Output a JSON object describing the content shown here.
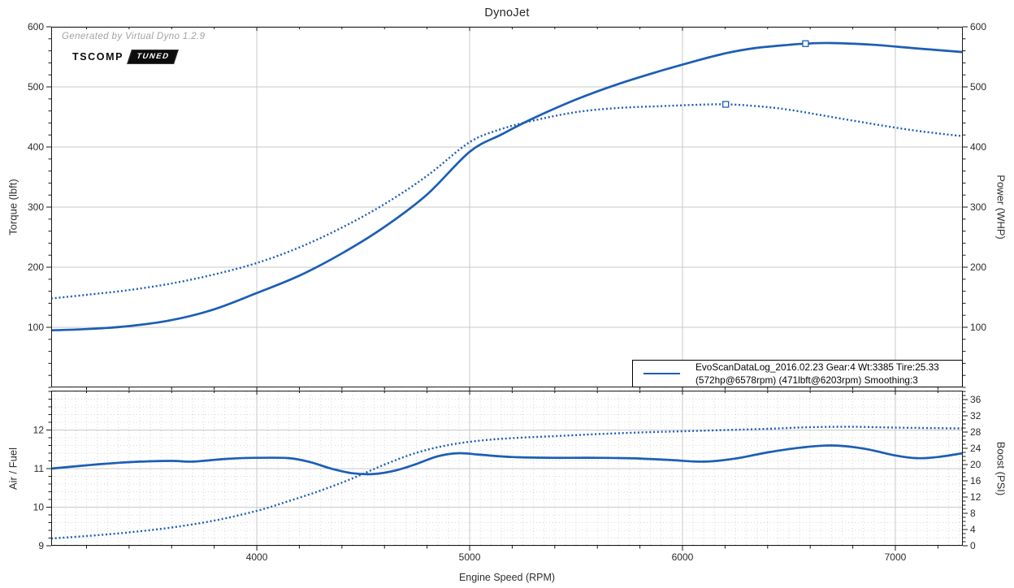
{
  "watermark": "Generated by Virtual Dyno 1.2.9",
  "logo": {
    "brand": "TSCOMP",
    "badge": "TUNED"
  },
  "colors": {
    "line_blue": "#1c5eb5",
    "grid_major": "#c9c9c9",
    "grid_fine": "#d8d8d2",
    "frame": "#1a1a1a",
    "tick_text": "#2b2b2b"
  },
  "chart_data": [
    {
      "type": "line",
      "title": "DynoJet",
      "xlabel": "Engine Speed (RPM)",
      "ylabel_left": "Torque (lbft)",
      "ylabel_right": "Power (WHP)",
      "xlim": [
        3034,
        7317
      ],
      "x_ticks": [
        4000,
        5000,
        6000,
        7000
      ],
      "ylim_left": [
        0,
        600
      ],
      "ylim_right": [
        0,
        600
      ],
      "y_ticks_left": [
        100,
        200,
        300,
        400,
        500,
        600
      ],
      "y_ticks_right": [
        100,
        200,
        300,
        400,
        500,
        600
      ],
      "grid": "major",
      "legend": {
        "position": "bottom-right",
        "line1": "EvoScanDataLog_2016.02.23 Gear:4 Wt:3385 Tire:25.33",
        "line2": "(572hp@6578rpm) (471lbft@6203rpm) Smoothing:3"
      },
      "series": [
        {
          "name": "Power (WHP)",
          "axis": "right",
          "style": "solid",
          "peak": {
            "x": 6578,
            "y": 572,
            "label": "572hp@6578rpm"
          },
          "points": [
            [
              3034,
              95
            ],
            [
              3200,
              97
            ],
            [
              3400,
              102
            ],
            [
              3600,
              112
            ],
            [
              3800,
              130
            ],
            [
              4000,
              157
            ],
            [
              4200,
              186
            ],
            [
              4400,
              223
            ],
            [
              4600,
              267
            ],
            [
              4800,
              321
            ],
            [
              5000,
              392
            ],
            [
              5150,
              421
            ],
            [
              5300,
              448
            ],
            [
              5500,
              479
            ],
            [
              5700,
              505
            ],
            [
              5900,
              527
            ],
            [
              6050,
              542
            ],
            [
              6203,
              556
            ],
            [
              6350,
              565
            ],
            [
              6500,
              570
            ],
            [
              6578,
              572
            ],
            [
              6700,
              573
            ],
            [
              6900,
              570
            ],
            [
              7100,
              564
            ],
            [
              7317,
              558
            ]
          ]
        },
        {
          "name": "Torque (lbft)",
          "axis": "left",
          "style": "dotted",
          "peak": {
            "x": 6203,
            "y": 471,
            "label": "471lbft@6203rpm"
          },
          "points": [
            [
              3034,
              148
            ],
            [
              3200,
              154
            ],
            [
              3400,
              162
            ],
            [
              3600,
              173
            ],
            [
              3800,
              188
            ],
            [
              4000,
              207
            ],
            [
              4200,
              233
            ],
            [
              4400,
              266
            ],
            [
              4600,
              305
            ],
            [
              4800,
              352
            ],
            [
              5000,
              408
            ],
            [
              5150,
              430
            ],
            [
              5300,
              444
            ],
            [
              5500,
              458
            ],
            [
              5700,
              465
            ],
            [
              5900,
              468
            ],
            [
              6050,
              470
            ],
            [
              6203,
              471
            ],
            [
              6350,
              468
            ],
            [
              6500,
              462
            ],
            [
              6700,
              450
            ],
            [
              6900,
              438
            ],
            [
              7100,
              427
            ],
            [
              7317,
              418
            ]
          ]
        }
      ]
    },
    {
      "type": "line",
      "title": "",
      "xlabel": "Engine Speed (RPM)",
      "ylabel_left": "Air / Fuel",
      "ylabel_right": "Boost (PSI)",
      "xlim": [
        3034,
        7317
      ],
      "x_ticks": [
        4000,
        5000,
        6000,
        7000
      ],
      "ylim_left": [
        9,
        13.02
      ],
      "ylim_right": [
        0,
        38.2
      ],
      "y_ticks_left": [
        9,
        10,
        11,
        12
      ],
      "y_ticks_right": [
        0,
        4,
        8,
        12,
        16,
        20,
        24,
        28,
        32,
        36
      ],
      "grid": "minor-dotted",
      "series": [
        {
          "name": "Air / Fuel",
          "axis": "left",
          "style": "solid",
          "points": [
            [
              3034,
              11.0
            ],
            [
              3150,
              11.06
            ],
            [
              3300,
              11.13
            ],
            [
              3450,
              11.18
            ],
            [
              3600,
              11.2
            ],
            [
              3700,
              11.18
            ],
            [
              3850,
              11.25
            ],
            [
              4000,
              11.28
            ],
            [
              4150,
              11.27
            ],
            [
              4250,
              11.17
            ],
            [
              4350,
              11.0
            ],
            [
              4450,
              10.88
            ],
            [
              4550,
              10.86
            ],
            [
              4650,
              10.95
            ],
            [
              4750,
              11.12
            ],
            [
              4850,
              11.32
            ],
            [
              4950,
              11.4
            ],
            [
              5050,
              11.36
            ],
            [
              5200,
              11.3
            ],
            [
              5400,
              11.28
            ],
            [
              5600,
              11.28
            ],
            [
              5800,
              11.26
            ],
            [
              5950,
              11.22
            ],
            [
              6100,
              11.18
            ],
            [
              6250,
              11.26
            ],
            [
              6400,
              11.42
            ],
            [
              6550,
              11.54
            ],
            [
              6700,
              11.6
            ],
            [
              6850,
              11.52
            ],
            [
              7000,
              11.34
            ],
            [
              7100,
              11.27
            ],
            [
              7200,
              11.3
            ],
            [
              7317,
              11.4
            ]
          ]
        },
        {
          "name": "Boost (PSI)",
          "axis": "right",
          "style": "dotted",
          "points": [
            [
              3034,
              1.8
            ],
            [
              3200,
              2.4
            ],
            [
              3400,
              3.3
            ],
            [
              3600,
              4.5
            ],
            [
              3800,
              6.2
            ],
            [
              4000,
              8.6
            ],
            [
              4150,
              11.0
            ],
            [
              4300,
              13.6
            ],
            [
              4450,
              16.6
            ],
            [
              4600,
              20.0
            ],
            [
              4750,
              22.9
            ],
            [
              4900,
              24.8
            ],
            [
              5050,
              25.9
            ],
            [
              5200,
              26.5
            ],
            [
              5400,
              27.0
            ],
            [
              5600,
              27.5
            ],
            [
              5800,
              27.9
            ],
            [
              6000,
              28.2
            ],
            [
              6200,
              28.5
            ],
            [
              6400,
              28.8
            ],
            [
              6600,
              29.2
            ],
            [
              6800,
              29.3
            ],
            [
              7000,
              29.1
            ],
            [
              7150,
              29.0
            ],
            [
              7317,
              28.9
            ]
          ]
        }
      ]
    }
  ]
}
